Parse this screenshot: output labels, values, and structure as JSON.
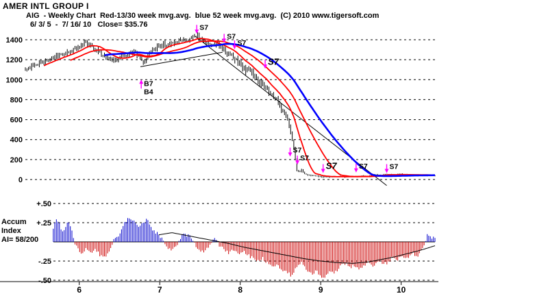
{
  "window": {
    "title": "AMER INTL GROUP I"
  },
  "header": {
    "line1": "AIG  - Weekly Chart  Red-13/30 week mvg.avg.  blue 52 week mvg.avg.  (C) 2010 www.tigersoft.com",
    "line2": "6/ 3/ 5  -  7/ 16/ 10   Close= $35.76"
  },
  "chart_data": [
    {
      "name": "price-panel",
      "type": "bar",
      "title": "AIG - Weekly Chart",
      "legend": {
        "red": "13/30 week mvg.avg.",
        "blue": "52 week mvg.avg."
      },
      "x_range": [
        5.33,
        10.42
      ],
      "y_range": [
        0,
        1400
      ],
      "y_ticks": [
        1400,
        1200,
        1000,
        800,
        600,
        400,
        200,
        0
      ],
      "x_tick_labels": [
        "6",
        "7",
        "8",
        "9",
        "10"
      ],
      "x_tick_values": [
        6,
        7,
        8,
        9,
        10
      ],
      "close_anchors": [
        [
          5.33,
          1090
        ],
        [
          5.42,
          1140
        ],
        [
          5.5,
          1160
        ],
        [
          5.58,
          1190
        ],
        [
          5.66,
          1210
        ],
        [
          5.75,
          1240
        ],
        [
          5.83,
          1265
        ],
        [
          5.91,
          1295
        ],
        [
          5.99,
          1335
        ],
        [
          6.06,
          1370
        ],
        [
          6.12,
          1345
        ],
        [
          6.2,
          1300
        ],
        [
          6.28,
          1250
        ],
        [
          6.36,
          1205
        ],
        [
          6.44,
          1190
        ],
        [
          6.52,
          1230
        ],
        [
          6.6,
          1255
        ],
        [
          6.68,
          1285
        ],
        [
          6.74,
          1225
        ],
        [
          6.8,
          1175
        ],
        [
          6.86,
          1255
        ],
        [
          6.92,
          1305
        ],
        [
          7.0,
          1345
        ],
        [
          7.08,
          1350
        ],
        [
          7.16,
          1365
        ],
        [
          7.24,
          1380
        ],
        [
          7.32,
          1395
        ],
        [
          7.4,
          1420
        ],
        [
          7.46,
          1440
        ],
        [
          7.52,
          1410
        ],
        [
          7.58,
          1370
        ],
        [
          7.66,
          1335
        ],
        [
          7.72,
          1355
        ],
        [
          7.78,
          1310
        ],
        [
          7.84,
          1270
        ],
        [
          7.9,
          1230
        ],
        [
          7.96,
          1180
        ],
        [
          8.02,
          1130
        ],
        [
          8.08,
          1100
        ],
        [
          8.14,
          1060
        ],
        [
          8.2,
          1000
        ],
        [
          8.26,
          960
        ],
        [
          8.32,
          915
        ],
        [
          8.38,
          860
        ],
        [
          8.44,
          810
        ],
        [
          8.5,
          730
        ],
        [
          8.55,
          660
        ],
        [
          8.6,
          560
        ],
        [
          8.64,
          430
        ],
        [
          8.67,
          300
        ],
        [
          8.7,
          100
        ],
        [
          8.73,
          70
        ],
        [
          8.76,
          95
        ],
        [
          8.8,
          60
        ],
        [
          8.84,
          45
        ],
        [
          8.9,
          40
        ],
        [
          9.0,
          28
        ],
        [
          9.1,
          26
        ],
        [
          9.2,
          30
        ],
        [
          9.3,
          26
        ],
        [
          9.4,
          30
        ],
        [
          9.5,
          35
        ],
        [
          9.58,
          30
        ],
        [
          9.66,
          50
        ],
        [
          9.74,
          45
        ],
        [
          9.82,
          52
        ],
        [
          9.9,
          48
        ],
        [
          10.0,
          52
        ],
        [
          10.1,
          46
        ],
        [
          10.2,
          42
        ],
        [
          10.3,
          38
        ],
        [
          10.42,
          36
        ]
      ],
      "moving_averages": [
        {
          "name": "ma-13-week-line",
          "weeks": 13,
          "color": "#ff0000",
          "width": 1.8
        },
        {
          "name": "ma-30-week-line",
          "weeks": 30,
          "color": "#ff0000",
          "width": 1.8
        },
        {
          "name": "ma-52-week-line",
          "weeks": 52,
          "color": "#0000ff",
          "width": 2.6
        }
      ],
      "trendlines": [
        {
          "from": [
            6.76,
            1130
          ],
          "to": [
            7.78,
            1275
          ]
        },
        {
          "from": [
            7.44,
            1435
          ],
          "to": [
            9.82,
            -60
          ]
        }
      ],
      "signals": [
        {
          "labels": [
            "S7"
          ],
          "year": 7.46,
          "price": 1460,
          "dir": "down",
          "bold": false
        },
        {
          "labels": [
            "S7"
          ],
          "year": 7.8,
          "price": 1370,
          "dir": "down",
          "bold": false
        },
        {
          "labels": [
            "S7"
          ],
          "year": 7.93,
          "price": 1305,
          "dir": "down",
          "bold": false
        },
        {
          "labels": [
            "S7"
          ],
          "year": 8.31,
          "price": 1110,
          "dir": "down",
          "bold": true
        },
        {
          "labels": [
            "B7",
            "B4"
          ],
          "year": 6.77,
          "price": 1000,
          "dir": "up",
          "bold": false
        },
        {
          "labels": [
            "S7"
          ],
          "year": 8.62,
          "price": 230,
          "dir": "down",
          "bold": false
        },
        {
          "labels": [
            "S7"
          ],
          "year": 8.71,
          "price": 150,
          "dir": "down",
          "bold": false
        },
        {
          "labels": [
            "S7"
          ],
          "year": 9.03,
          "price": 65,
          "dir": "down",
          "bold": true
        },
        {
          "labels": [
            "S7"
          ],
          "year": 9.44,
          "price": 70,
          "dir": "down",
          "bold": false
        },
        {
          "labels": [
            "S7"
          ],
          "year": 9.82,
          "price": 65,
          "dir": "down",
          "bold": false
        }
      ],
      "colors": {
        "bars": "#000000",
        "ma_red": "#ff0000",
        "ma_blue": "#0000ff",
        "signal_arrow": "#ff00ff",
        "signal_text": "#000000",
        "trendline": "#000000"
      }
    },
    {
      "name": "accum-index-panel",
      "type": "histogram",
      "y_range": [
        -0.5,
        0.5
      ],
      "tick_values": [
        0.5,
        0.25,
        -0.25,
        -0.5
      ],
      "tick_labels": [
        "+.50",
        "+.25",
        "-.25",
        "-.50"
      ],
      "left_labels": [
        "Accum",
        "Index",
        "AI= 58/200"
      ],
      "start_year": 5.66,
      "anchors": [
        [
          5.62,
          0.04
        ],
        [
          5.68,
          0.18
        ],
        [
          5.72,
          0.3
        ],
        [
          5.76,
          0.22
        ],
        [
          5.8,
          0.12
        ],
        [
          5.84,
          0.22
        ],
        [
          5.88,
          0.26
        ],
        [
          5.92,
          0.1
        ],
        [
          5.96,
          -0.06
        ],
        [
          6.02,
          -0.14
        ],
        [
          6.08,
          -0.1
        ],
        [
          6.14,
          -0.16
        ],
        [
          6.2,
          -0.1
        ],
        [
          6.26,
          -0.18
        ],
        [
          6.32,
          -0.2
        ],
        [
          6.38,
          -0.12
        ],
        [
          6.44,
          0.06
        ],
        [
          6.5,
          0.1
        ],
        [
          6.54,
          0.22
        ],
        [
          6.6,
          0.3
        ],
        [
          6.66,
          0.28
        ],
        [
          6.72,
          0.2
        ],
        [
          6.78,
          0.24
        ],
        [
          6.84,
          0.28
        ],
        [
          6.9,
          0.18
        ],
        [
          6.96,
          0.12
        ],
        [
          7.02,
          0.06
        ],
        [
          7.08,
          -0.06
        ],
        [
          7.14,
          -0.1
        ],
        [
          7.2,
          -0.08
        ],
        [
          7.26,
          0.06
        ],
        [
          7.32,
          0.1
        ],
        [
          7.38,
          0.06
        ],
        [
          7.44,
          -0.04
        ],
        [
          7.5,
          -0.1
        ],
        [
          7.56,
          -0.12
        ],
        [
          7.62,
          -0.06
        ],
        [
          7.68,
          0.05
        ],
        [
          7.74,
          -0.04
        ],
        [
          7.8,
          -0.1
        ],
        [
          7.86,
          -0.14
        ],
        [
          7.92,
          -0.1
        ],
        [
          7.98,
          -0.16
        ],
        [
          8.04,
          -0.12
        ],
        [
          8.1,
          -0.18
        ],
        [
          8.16,
          -0.22
        ],
        [
          8.22,
          -0.26
        ],
        [
          8.28,
          -0.22
        ],
        [
          8.34,
          -0.28
        ],
        [
          8.4,
          -0.34
        ],
        [
          8.46,
          -0.3
        ],
        [
          8.52,
          -0.36
        ],
        [
          8.58,
          -0.4
        ],
        [
          8.64,
          -0.44
        ],
        [
          8.7,
          -0.34
        ],
        [
          8.76,
          -0.28
        ],
        [
          8.82,
          -0.36
        ],
        [
          8.88,
          -0.42
        ],
        [
          8.94,
          -0.38
        ],
        [
          9.0,
          -0.44
        ],
        [
          9.06,
          -0.46
        ],
        [
          9.12,
          -0.36
        ],
        [
          9.18,
          -0.4
        ],
        [
          9.24,
          -0.32
        ],
        [
          9.3,
          -0.28
        ],
        [
          9.36,
          -0.34
        ],
        [
          9.42,
          -0.3
        ],
        [
          9.48,
          -0.36
        ],
        [
          9.54,
          -0.32
        ],
        [
          9.6,
          -0.26
        ],
        [
          9.66,
          -0.32
        ],
        [
          9.72,
          -0.24
        ],
        [
          9.78,
          -0.3
        ],
        [
          9.84,
          -0.26
        ],
        [
          9.9,
          -0.2
        ],
        [
          9.96,
          -0.24
        ],
        [
          10.02,
          -0.18
        ],
        [
          10.08,
          -0.22
        ],
        [
          10.14,
          -0.14
        ],
        [
          10.2,
          -0.18
        ],
        [
          10.26,
          -0.1
        ],
        [
          10.32,
          0.08
        ],
        [
          10.38,
          0.06
        ],
        [
          10.42,
          0.07
        ]
      ],
      "ma_anchors": [
        [
          6.98,
          0.09
        ],
        [
          7.15,
          0.12
        ],
        [
          7.35,
          0.08
        ],
        [
          7.6,
          0.03
        ],
        [
          7.85,
          -0.02
        ],
        [
          8.05,
          -0.07
        ],
        [
          8.3,
          -0.12
        ],
        [
          8.55,
          -0.17
        ],
        [
          8.8,
          -0.22
        ],
        [
          9.0,
          -0.25
        ],
        [
          9.2,
          -0.27
        ],
        [
          9.4,
          -0.28
        ],
        [
          9.6,
          -0.26
        ],
        [
          9.75,
          -0.23
        ],
        [
          9.9,
          -0.2
        ],
        [
          10.05,
          -0.16
        ],
        [
          10.2,
          -0.12
        ],
        [
          10.3,
          -0.09
        ],
        [
          10.42,
          -0.05
        ]
      ],
      "colors": {
        "positive": "#0000cc",
        "negative": "#cc0000",
        "ma_line": "#000000"
      }
    }
  ]
}
